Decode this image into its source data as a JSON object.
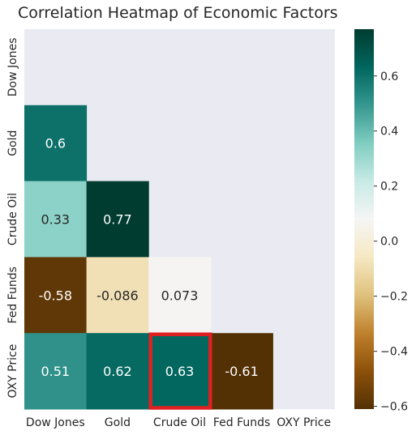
{
  "chart_data": {
    "type": "heatmap",
    "title": "Correlation Heatmap of Economic Factors",
    "row_labels": [
      "Dow Jones",
      "Gold",
      "Crude Oil",
      "Fed Funds",
      "OXY Price"
    ],
    "col_labels": [
      "Dow Jones",
      "Gold",
      "Crude Oil",
      "Fed Funds",
      "OXY Price"
    ],
    "values": [
      [
        null,
        null,
        null,
        null,
        null
      ],
      [
        0.6,
        null,
        null,
        null,
        null
      ],
      [
        0.33,
        0.77,
        null,
        null,
        null
      ],
      [
        -0.58,
        -0.086,
        0.073,
        null,
        null
      ],
      [
        0.51,
        0.62,
        0.63,
        -0.61,
        null
      ]
    ],
    "annotations": [
      [
        null,
        null,
        null,
        null,
        null
      ],
      [
        "0.6",
        null,
        null,
        null,
        null
      ],
      [
        "0.33",
        "0.77",
        null,
        null,
        null
      ],
      [
        "-0.58",
        "-0.086",
        "0.073",
        null,
        null
      ],
      [
        "0.51",
        "0.62",
        "0.63",
        "-0.61",
        null
      ]
    ],
    "masked": "upper triangle including diagonal",
    "colormap": "BrBG",
    "color_range": [
      -0.61,
      0.77
    ],
    "colorbar_ticks": [
      -0.6,
      -0.4,
      -0.2,
      0.0,
      0.2,
      0.4,
      0.6
    ],
    "colorbar_tick_labels": [
      "−0.6",
      "−0.4",
      "−0.2",
      "0.0",
      "0.2",
      "0.4",
      "0.6"
    ],
    "highlight": {
      "row": "OXY Price",
      "col": "Crude Oil",
      "color": "#e02020"
    },
    "background": "#eaeaf2"
  }
}
